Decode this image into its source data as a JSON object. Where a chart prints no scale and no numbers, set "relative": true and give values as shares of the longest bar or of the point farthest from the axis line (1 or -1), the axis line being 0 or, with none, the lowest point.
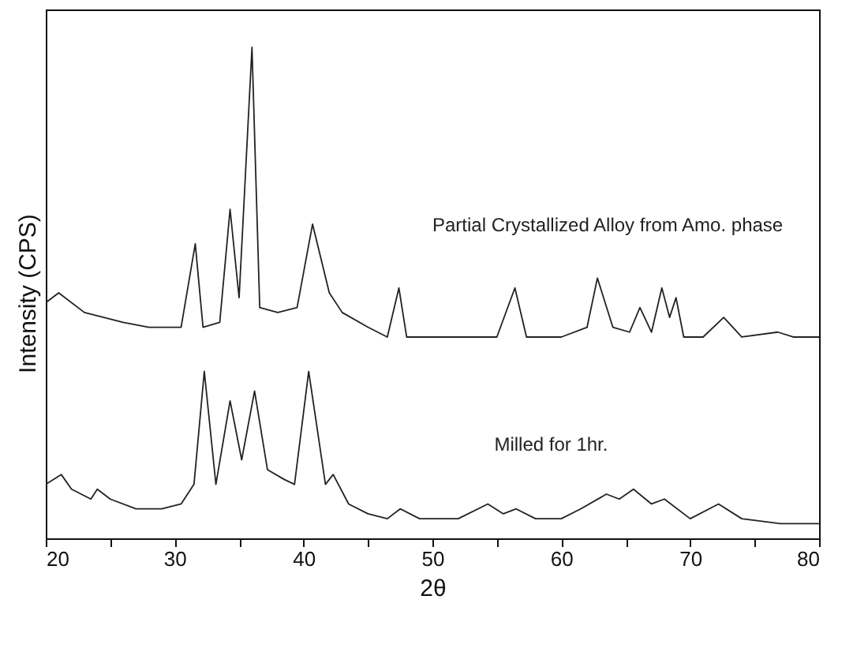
{
  "chart_data": {
    "type": "line",
    "relative": true,
    "xlabel": "2θ",
    "ylabel": "Intensity (CPS)",
    "xlim": [
      20,
      80
    ],
    "xticks": [
      20,
      {
        "value": 25,
        "label": null
      },
      30,
      {
        "value": 35,
        "label": null
      },
      40,
      {
        "value": 45,
        "label": null
      },
      50,
      {
        "value": 55,
        "label": null
      },
      60,
      {
        "value": 65,
        "label": null
      },
      70,
      {
        "value": 75,
        "label": null
      },
      80
    ],
    "grid": false,
    "legend": false,
    "marker": "none",
    "line_style": "solid",
    "series": [
      {
        "name": "Partial Crystallized Alloy from Amo. phase",
        "color": "#222222",
        "x": [
          20,
          21,
          23,
          26,
          28,
          30.5,
          31.6,
          32.2,
          33.5,
          34.3,
          35.0,
          36.0,
          36.6,
          38,
          39.5,
          40.7,
          42,
          43,
          45,
          46.5,
          47.4,
          48,
          50,
          55,
          56.4,
          57.3,
          60,
          62,
          62.8,
          64,
          65.3,
          66.1,
          67,
          67.8,
          68.4,
          68.9,
          69.5,
          71,
          72.6,
          74,
          76.8,
          78,
          80
        ],
        "values": [
          0.48,
          0.5,
          0.46,
          0.44,
          0.43,
          0.43,
          0.6,
          0.43,
          0.44,
          0.67,
          0.49,
          1.0,
          0.47,
          0.46,
          0.47,
          0.64,
          0.5,
          0.46,
          0.43,
          0.41,
          0.51,
          0.41,
          0.41,
          0.41,
          0.51,
          0.41,
          0.41,
          0.43,
          0.53,
          0.43,
          0.42,
          0.47,
          0.42,
          0.51,
          0.45,
          0.49,
          0.41,
          0.41,
          0.45,
          0.41,
          0.42,
          0.41,
          0.41
        ]
      },
      {
        "name": "Milled for 1hr.",
        "color": "#222222",
        "x": [
          20,
          21.2,
          22,
          23.5,
          24,
          25,
          27,
          29,
          30.5,
          31.5,
          32.3,
          33.2,
          34.3,
          35.2,
          36.2,
          37.2,
          38.5,
          39.3,
          40.4,
          41.7,
          42.3,
          43.5,
          45,
          46.5,
          47.5,
          49,
          52,
          54.3,
          55.5,
          56.5,
          58,
          60,
          61.5,
          63.5,
          64.5,
          65.6,
          67,
          68,
          70,
          72.2,
          74,
          77,
          80
        ],
        "values": [
          0.11,
          0.13,
          0.1,
          0.08,
          0.1,
          0.08,
          0.06,
          0.06,
          0.07,
          0.11,
          0.34,
          0.11,
          0.28,
          0.16,
          0.3,
          0.14,
          0.12,
          0.11,
          0.34,
          0.11,
          0.13,
          0.07,
          0.05,
          0.04,
          0.06,
          0.04,
          0.04,
          0.07,
          0.05,
          0.06,
          0.04,
          0.04,
          0.06,
          0.09,
          0.08,
          0.1,
          0.07,
          0.08,
          0.04,
          0.07,
          0.04,
          0.03,
          0.03
        ]
      }
    ]
  }
}
